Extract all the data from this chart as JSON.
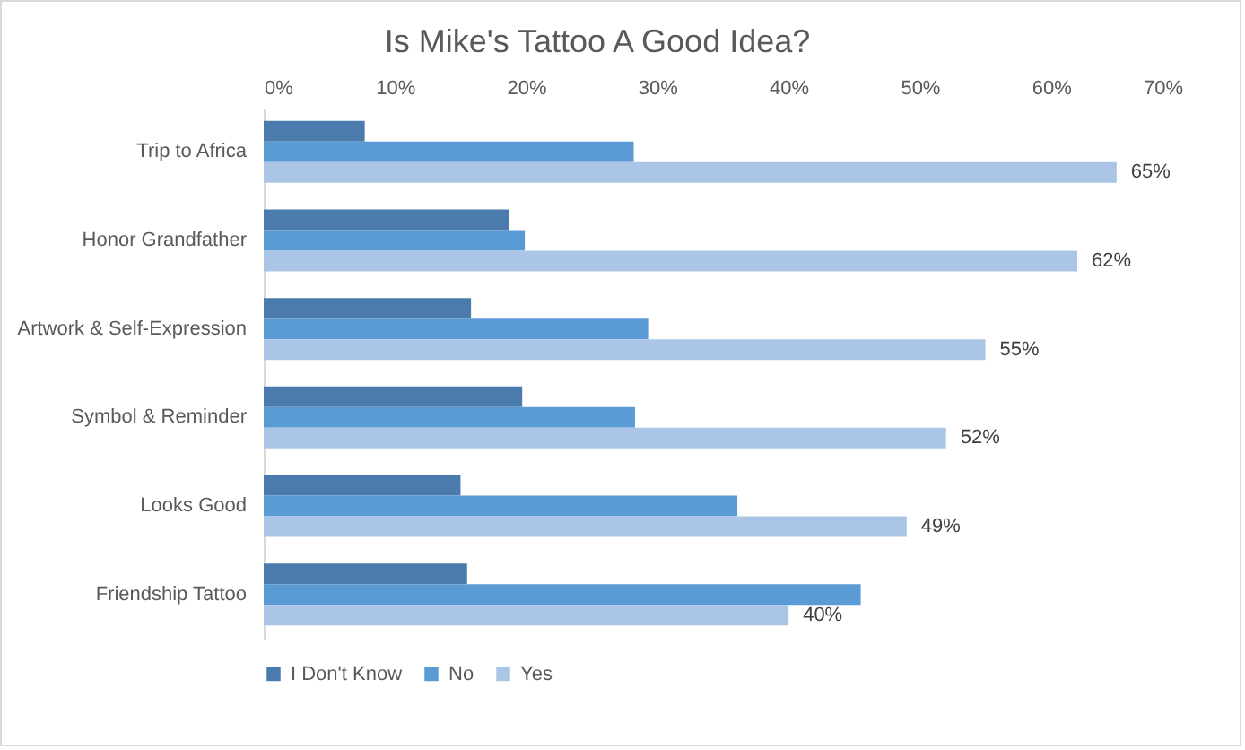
{
  "chart_data": {
    "type": "bar",
    "orientation": "horizontal",
    "title": "Is Mike's Tattoo A Good Idea?",
    "categories": [
      "Trip to Africa",
      "Honor Grandfather",
      "Artwork & Self-Expression",
      "Symbol & Reminder",
      "Looks Good",
      "Friendship Tattoo"
    ],
    "series": [
      {
        "name": "I Don't Know",
        "color": "#4a7bac",
        "values": [
          7.7,
          18.7,
          15.8,
          19.7,
          15.0,
          15.5
        ]
      },
      {
        "name": "No",
        "color": "#5b9bd5",
        "values": [
          28.2,
          19.9,
          29.3,
          28.3,
          36.1,
          45.5
        ]
      },
      {
        "name": "Yes",
        "color": "#abc5e6",
        "values": [
          65,
          62,
          55,
          52,
          49,
          40
        ],
        "value_labels": [
          "65%",
          "62%",
          "55%",
          "52%",
          "49%",
          "40%"
        ]
      }
    ],
    "xlim": [
      0,
      70
    ],
    "xticks": [
      {
        "value": 0,
        "label": "0%"
      },
      {
        "value": 10,
        "label": "10%"
      },
      {
        "value": 20,
        "label": "20%"
      },
      {
        "value": 30,
        "label": "30%"
      },
      {
        "value": 40,
        "label": "40%"
      },
      {
        "value": 50,
        "label": "50%"
      },
      {
        "value": 60,
        "label": "60%"
      },
      {
        "value": 70,
        "label": "70%"
      }
    ],
    "grid": false,
    "legend": "bottom"
  }
}
